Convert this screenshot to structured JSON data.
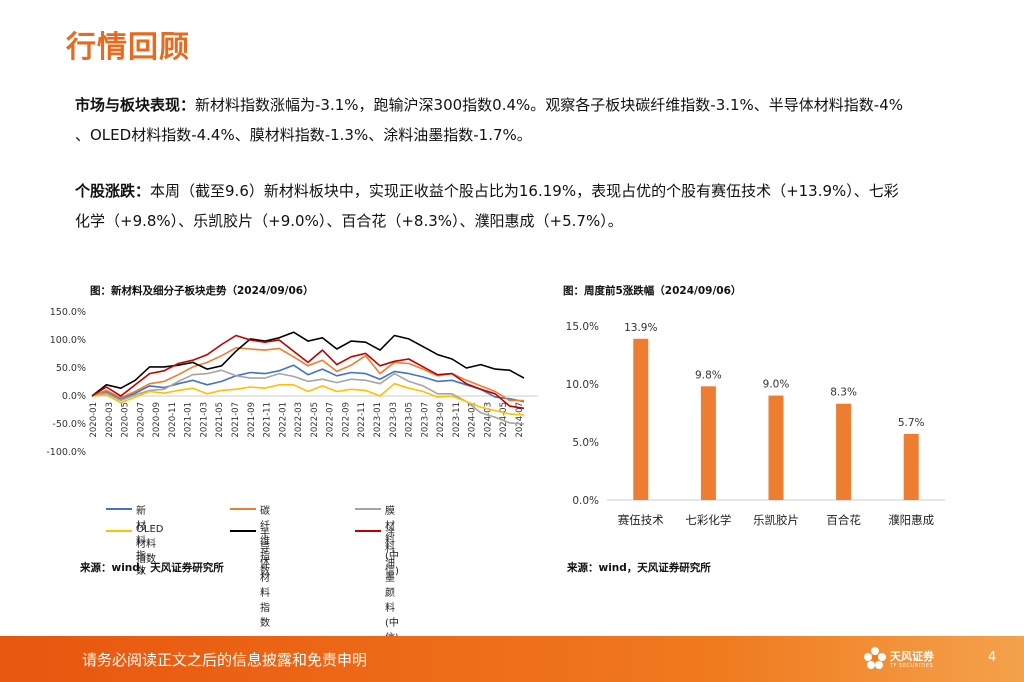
{
  "page": {
    "title": "行情回顾",
    "footer_text": "请务必阅读正文之后的信息披露和免责申明",
    "page_number": "4",
    "logo_cn": "天风证券",
    "logo_en": "TF SECURITIES",
    "accent_color": "#e86a1e"
  },
  "paragraphs": {
    "market": {
      "label": "市场与板块表现：",
      "line1": "新材料指数涨幅为-3.1%，跑输沪深300指数0.4%。观察各子板块碳纤维指数-3.1%、半导体材料指数-4%",
      "line2": "、OLED材料指数-4.4%、膜材料指数-1.3%、涂料油墨指数-1.7%。"
    },
    "stocks": {
      "label": "个股涨跌：",
      "line1": "本周（截至9.6）新材料板块中，实现正收益个股占比为16.19%，表现占优的个股有赛伍技术（+13.9%）、七彩",
      "line2": "化学（+9.8%）、乐凯胶片（+9.0%）、百合花（+8.3%）、濮阳惠成（+5.7%）。"
    }
  },
  "figures": {
    "left": {
      "title": "图：新材料及细分子板块走势（2024/09/06）",
      "source": "来源：wind，天风证券研究所"
    },
    "right": {
      "title": "图：周度前5涨跌幅（2024/09/06）",
      "source": "来源：wind，天风证券研究所"
    }
  },
  "chart_data": [
    {
      "type": "line",
      "title": "",
      "y_tick_labels": [
        "150.0%",
        "100.0%",
        "50.0%",
        "0.0%",
        "-50.0%",
        "-100.0%"
      ],
      "ylim": [
        -100,
        150
      ],
      "x_tick_labels": [
        "2020-01",
        "2020-03",
        "2020-05",
        "2020-07",
        "2020-09",
        "2020-11",
        "2021-01",
        "2021-03",
        "2021-05",
        "2021-07",
        "2021-09",
        "2021-11",
        "2022-01",
        "2022-03",
        "2022-05",
        "2022-07",
        "2022-09",
        "2022-11",
        "2023-01",
        "2023-03",
        "2023-05",
        "2023-07",
        "2023-09",
        "2023-11",
        "2024-01",
        "2024-03",
        "2024-05",
        "2024-07"
      ],
      "grid": false,
      "legend_position": "bottom",
      "series": [
        {
          "name": "新材料指数",
          "color": "#4472c4",
          "values": [
            0,
            8,
            -5,
            5,
            18,
            15,
            22,
            28,
            20,
            26,
            36,
            42,
            40,
            45,
            55,
            38,
            48,
            36,
            42,
            40,
            30,
            44,
            40,
            34,
            26,
            28,
            20,
            12,
            -2,
            -5,
            -10
          ]
        },
        {
          "name": "碳纤维指数",
          "color": "#ed7d31",
          "values": [
            0,
            10,
            -3,
            8,
            22,
            26,
            38,
            52,
            60,
            72,
            86,
            84,
            82,
            85,
            70,
            54,
            64,
            44,
            55,
            72,
            40,
            60,
            58,
            48,
            36,
            40,
            28,
            18,
            8,
            -8,
            -8
          ]
        },
        {
          "name": "膜材料(中信)",
          "color": "#a5a5a5",
          "values": [
            0,
            5,
            -8,
            2,
            10,
            12,
            26,
            38,
            40,
            46,
            36,
            32,
            32,
            40,
            35,
            26,
            30,
            24,
            30,
            28,
            22,
            40,
            26,
            18,
            4,
            4,
            -10,
            -30,
            -38,
            -48,
            -50
          ]
        },
        {
          "name": "OLED材料指数",
          "color": "#ffc000",
          "values": [
            0,
            2,
            -12,
            -2,
            8,
            5,
            10,
            14,
            4,
            10,
            12,
            16,
            14,
            20,
            20,
            8,
            18,
            8,
            12,
            10,
            0,
            22,
            14,
            8,
            -2,
            0,
            -10,
            -20,
            -26,
            -32,
            -34
          ]
        },
        {
          "name": "半导体材料指数",
          "color": "#000000",
          "values": [
            0,
            20,
            14,
            28,
            52,
            52,
            55,
            60,
            48,
            54,
            80,
            102,
            98,
            104,
            114,
            98,
            104,
            84,
            98,
            96,
            82,
            108,
            102,
            88,
            74,
            66,
            50,
            56,
            48,
            46,
            32
          ]
        },
        {
          "name": "涂料油墨颜料(中信)",
          "color": "#c00000",
          "values": [
            0,
            16,
            0,
            20,
            40,
            45,
            58,
            64,
            74,
            92,
            108,
            100,
            96,
            100,
            80,
            60,
            82,
            56,
            70,
            76,
            54,
            62,
            66,
            52,
            38,
            40,
            22,
            12,
            4,
            -18,
            -22
          ]
        }
      ]
    },
    {
      "type": "bar",
      "title": "",
      "categories": [
        "赛伍技术",
        "七彩化学",
        "乐凯胶片",
        "百合花",
        "濮阳惠成"
      ],
      "values": [
        13.9,
        9.8,
        9.0,
        8.3,
        5.7
      ],
      "value_labels": [
        "13.9%",
        "9.8%",
        "9.0%",
        "8.3%",
        "5.7%"
      ],
      "y_tick_labels": [
        "15.0%",
        "10.0%",
        "5.0%",
        "0.0%"
      ],
      "ylim": [
        0,
        15
      ],
      "color": "#ed7d31",
      "grid": false
    }
  ]
}
